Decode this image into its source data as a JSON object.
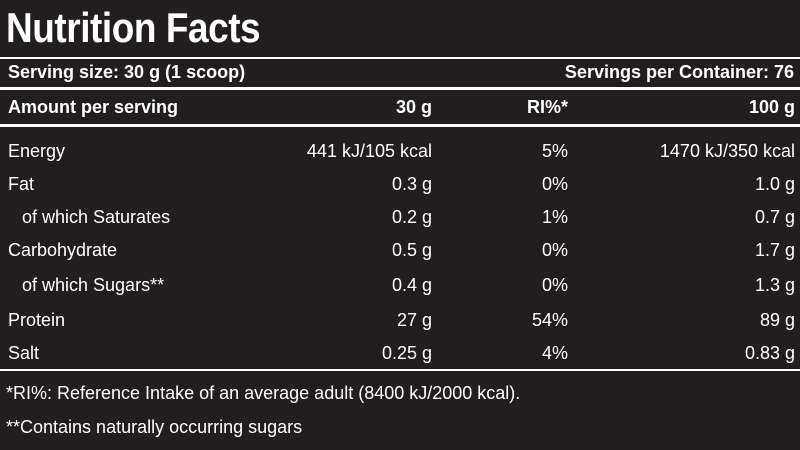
{
  "header": {
    "title": "Nutrition Facts"
  },
  "serving": {
    "size": "Serving size: 30 g (1 scoop)",
    "containers": "Servings per Container: 76"
  },
  "table": {
    "columns": [
      "Amount per serving",
      "30 g",
      "RI%*",
      "100 g"
    ],
    "rows": [
      [
        "Energy",
        "441 kJ/105 kcal",
        "5%",
        "1470 kJ/350 kcal"
      ],
      [
        "Fat",
        "0.3 g",
        "0%",
        "1.0 g"
      ],
      [
        "of which Saturates",
        "0.2 g",
        "1%",
        "0.7 g"
      ],
      [
        "Carbohydrate",
        "0.5 g",
        "0%",
        "1.7 g"
      ],
      [
        "of which Sugars**",
        "0.4 g",
        "0%",
        "1.3 g"
      ],
      [
        "Protein",
        "27 g",
        "54%",
        "89 g"
      ],
      [
        "Salt",
        "0.25 g",
        "4%",
        "0.83 g"
      ]
    ]
  },
  "footnotes": [
    "*RI%: Reference Intake of an average adult (8400 kJ/2000 kcal).",
    "**Contains naturally occurring sugars"
  ]
}
